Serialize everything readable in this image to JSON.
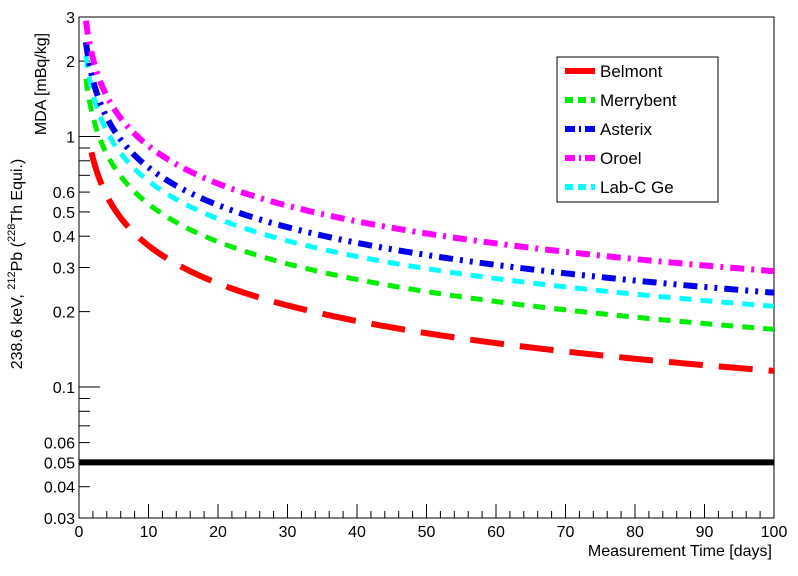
{
  "chart_data": {
    "type": "line",
    "title": "",
    "xlabel": "Measurement Time [days]",
    "ylabel_parts": {
      "main": "238.6 keV, ",
      "sup1": "212",
      "mid": "Pb (",
      "sup2": "228",
      "end": "Th Equi.)",
      "line2": "MDA [mBq/kg]"
    },
    "xlim": [
      0,
      100
    ],
    "ylim": [
      0.03,
      3
    ],
    "yscale": "log",
    "x_ticks": [
      0,
      10,
      20,
      30,
      40,
      50,
      60,
      70,
      80,
      90,
      100
    ],
    "x_tick_labels": [
      "0",
      "10",
      "20",
      "30",
      "40",
      "50",
      "60",
      "70",
      "80",
      "90",
      "100"
    ],
    "y_ticks": [
      0.03,
      0.04,
      0.05,
      0.06,
      0.1,
      0.2,
      0.3,
      0.4,
      0.5,
      0.6,
      1,
      2,
      3
    ],
    "y_tick_labels": [
      "0.03",
      "0.04",
      "0.05",
      "0.06",
      "0.1",
      "0.2",
      "0.3",
      "0.4",
      "0.5",
      "0.6",
      "1",
      "2",
      "3"
    ],
    "legend_position": "top-right",
    "series": [
      {
        "name": "Belmont",
        "color": "#ff0000",
        "style": "long-dash",
        "c": 1.16,
        "x_start": 1.8
      },
      {
        "name": "Merrybent",
        "color": "#00ee00",
        "style": "dash",
        "c": 1.7,
        "x_start": 1.0
      },
      {
        "name": "Asterix",
        "color": "#0000ee",
        "style": "dash-dot-dot",
        "c": 2.38,
        "x_start": 1.0
      },
      {
        "name": "Oroel",
        "color": "#ff00ff",
        "style": "dash-dot",
        "c": 2.9,
        "x_start": 1.0
      },
      {
        "name": "Lab-C Ge",
        "color": "#00ffff",
        "style": "dash",
        "c": 2.1,
        "x_start": 1.0
      }
    ],
    "reference_line": {
      "y": 0.05,
      "color": "#000000"
    }
  }
}
